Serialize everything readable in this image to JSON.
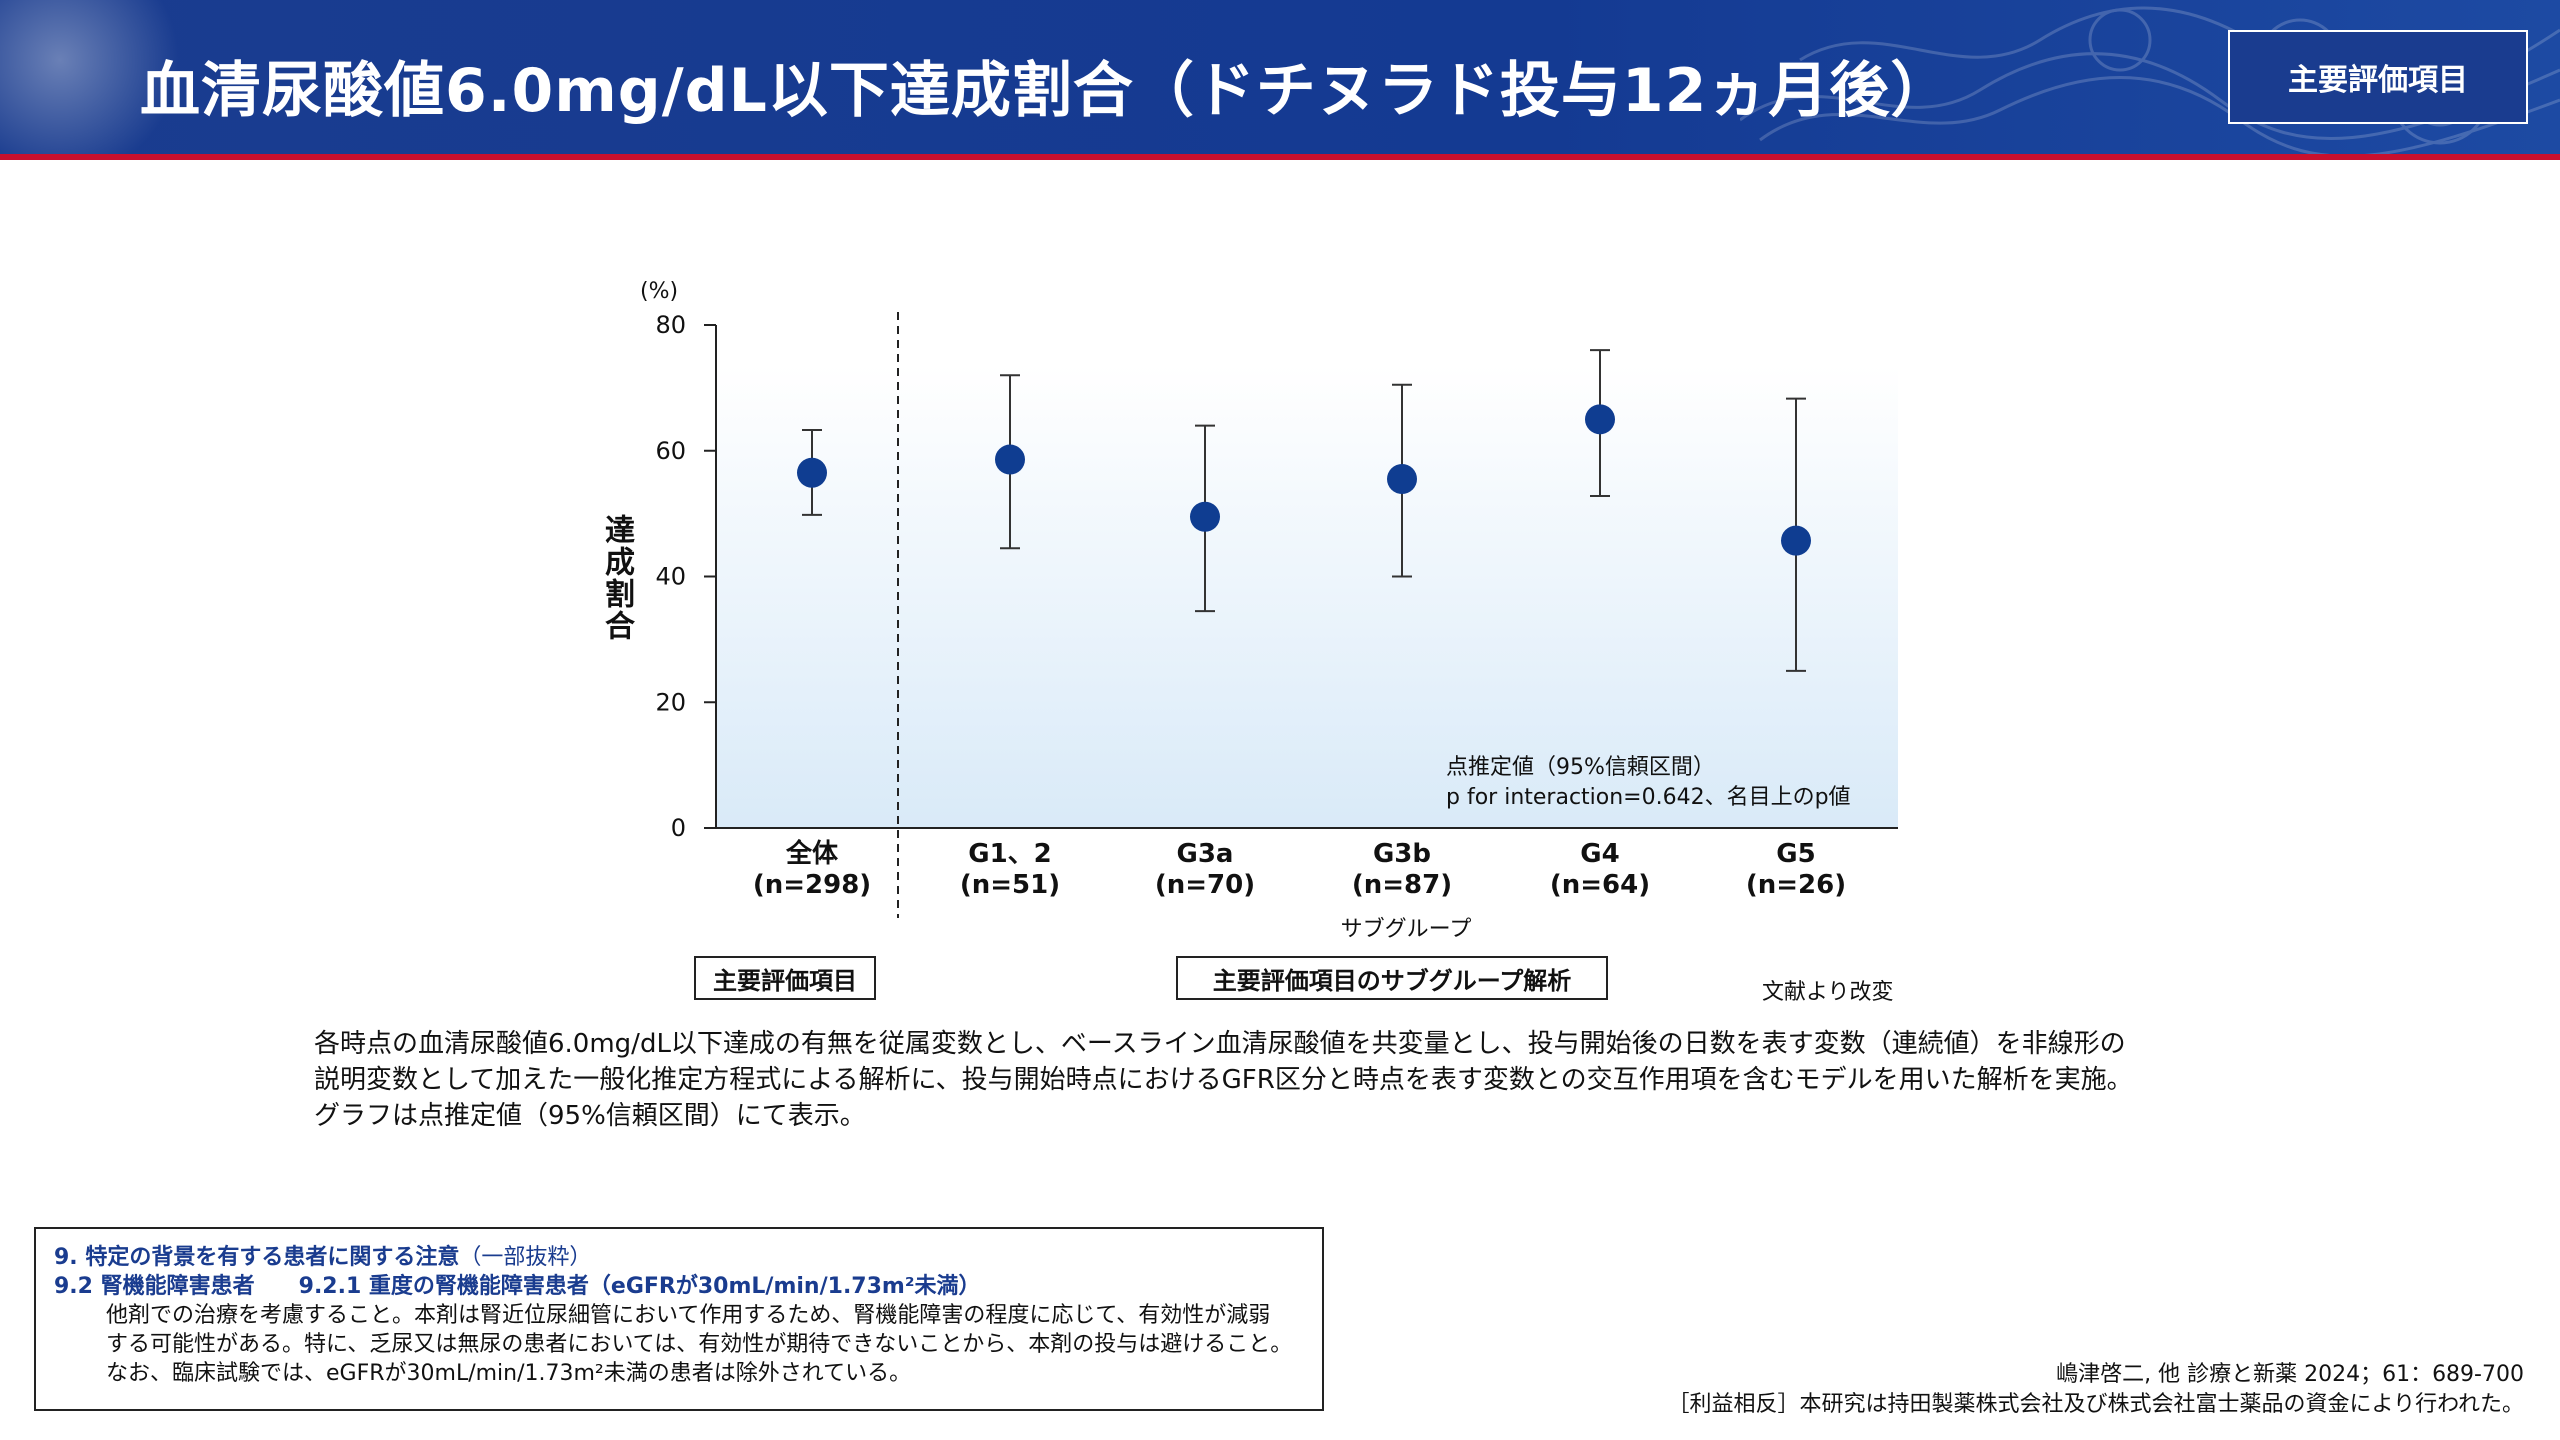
{
  "header": {
    "title": "血清尿酸値6.0mg/dL以下達成割合（ドチヌラド投与12ヵ月後）",
    "badge": "主要評価項目"
  },
  "chart_data": {
    "type": "scatter",
    "subtype": "point-estimate-with-95ci",
    "y_unit": "(%)",
    "ylabel": "達成割合",
    "xlabel": "サブグループ",
    "ylim": [
      0,
      80
    ],
    "yticks": [
      0,
      20,
      40,
      60,
      80
    ],
    "categories": [
      {
        "name": "全体",
        "n": "(n=298)",
        "estimate": 56.5,
        "ci_low": 49.8,
        "ci_high": 63.3
      },
      {
        "name": "G1、2",
        "n": "(n=51)",
        "estimate": 58.6,
        "ci_low": 44.5,
        "ci_high": 72.0
      },
      {
        "name": "G3a",
        "n": "(n=70)",
        "estimate": 49.5,
        "ci_low": 34.5,
        "ci_high": 64.0
      },
      {
        "name": "G3b",
        "n": "(n=87)",
        "estimate": 55.5,
        "ci_low": 40.0,
        "ci_high": 70.5
      },
      {
        "name": "G4",
        "n": "(n=64)",
        "estimate": 65.0,
        "ci_low": 52.8,
        "ci_high": 76.0
      },
      {
        "name": "G5",
        "n": "(n=26)",
        "estimate": 45.7,
        "ci_low": 25.0,
        "ci_high": 68.3
      }
    ],
    "annotation": [
      "点推定値（95%信頼区間）",
      "p for interaction=0.642、名目上のp値"
    ],
    "group_labels": [
      "主要評価項目",
      "主要評価項目のサブグループ解析"
    ],
    "grid": false,
    "colors": {
      "point": "#0f3d91",
      "ci": "#333333",
      "background_gradient_bottom": "#d9eaf8"
    }
  },
  "source_note": "文献より改変",
  "description": [
    "各時点の血清尿酸値6.0mg/dL以下達成の有無を従属変数とし、ベースライン血清尿酸値を共変量とし、投与開始後の日数を表す変数（連続値）を非線形の",
    "説明変数として加えた一般化推定方程式による解析に、投与開始時点におけるGFR区分と時点を表す変数との交互作用項を含むモデルを用いた解析を実施。",
    "グラフは点推定値（95%信頼区間）にて表示。"
  ],
  "caution": {
    "heading1": "9. 特定の背景を有する患者に関する注意",
    "heading1_note": "（一部抜粋）",
    "heading2": "9.2 腎機能障害患者　　9.2.1 重度の腎機能障害患者（eGFRが30mL/min/1.73m²未満）",
    "body": [
      "他剤での治療を考慮すること。本剤は腎近位尿細管において作用するため、腎機能障害の程度に応じて、有効性が減弱",
      "する可能性がある。特に、乏尿又は無尿の患者においては、有効性が期待できないことから、本剤の投与は避けること。",
      "なお、臨床試験では、eGFRが30mL/min/1.73m²未満の患者は除外されている。"
    ]
  },
  "references": [
    "嶋津啓二, 他 診療と新薬 2024；61：689-700",
    "［利益相反］本研究は持田製薬株式会社及び株式会社富士薬品の資金により行われた。"
  ]
}
